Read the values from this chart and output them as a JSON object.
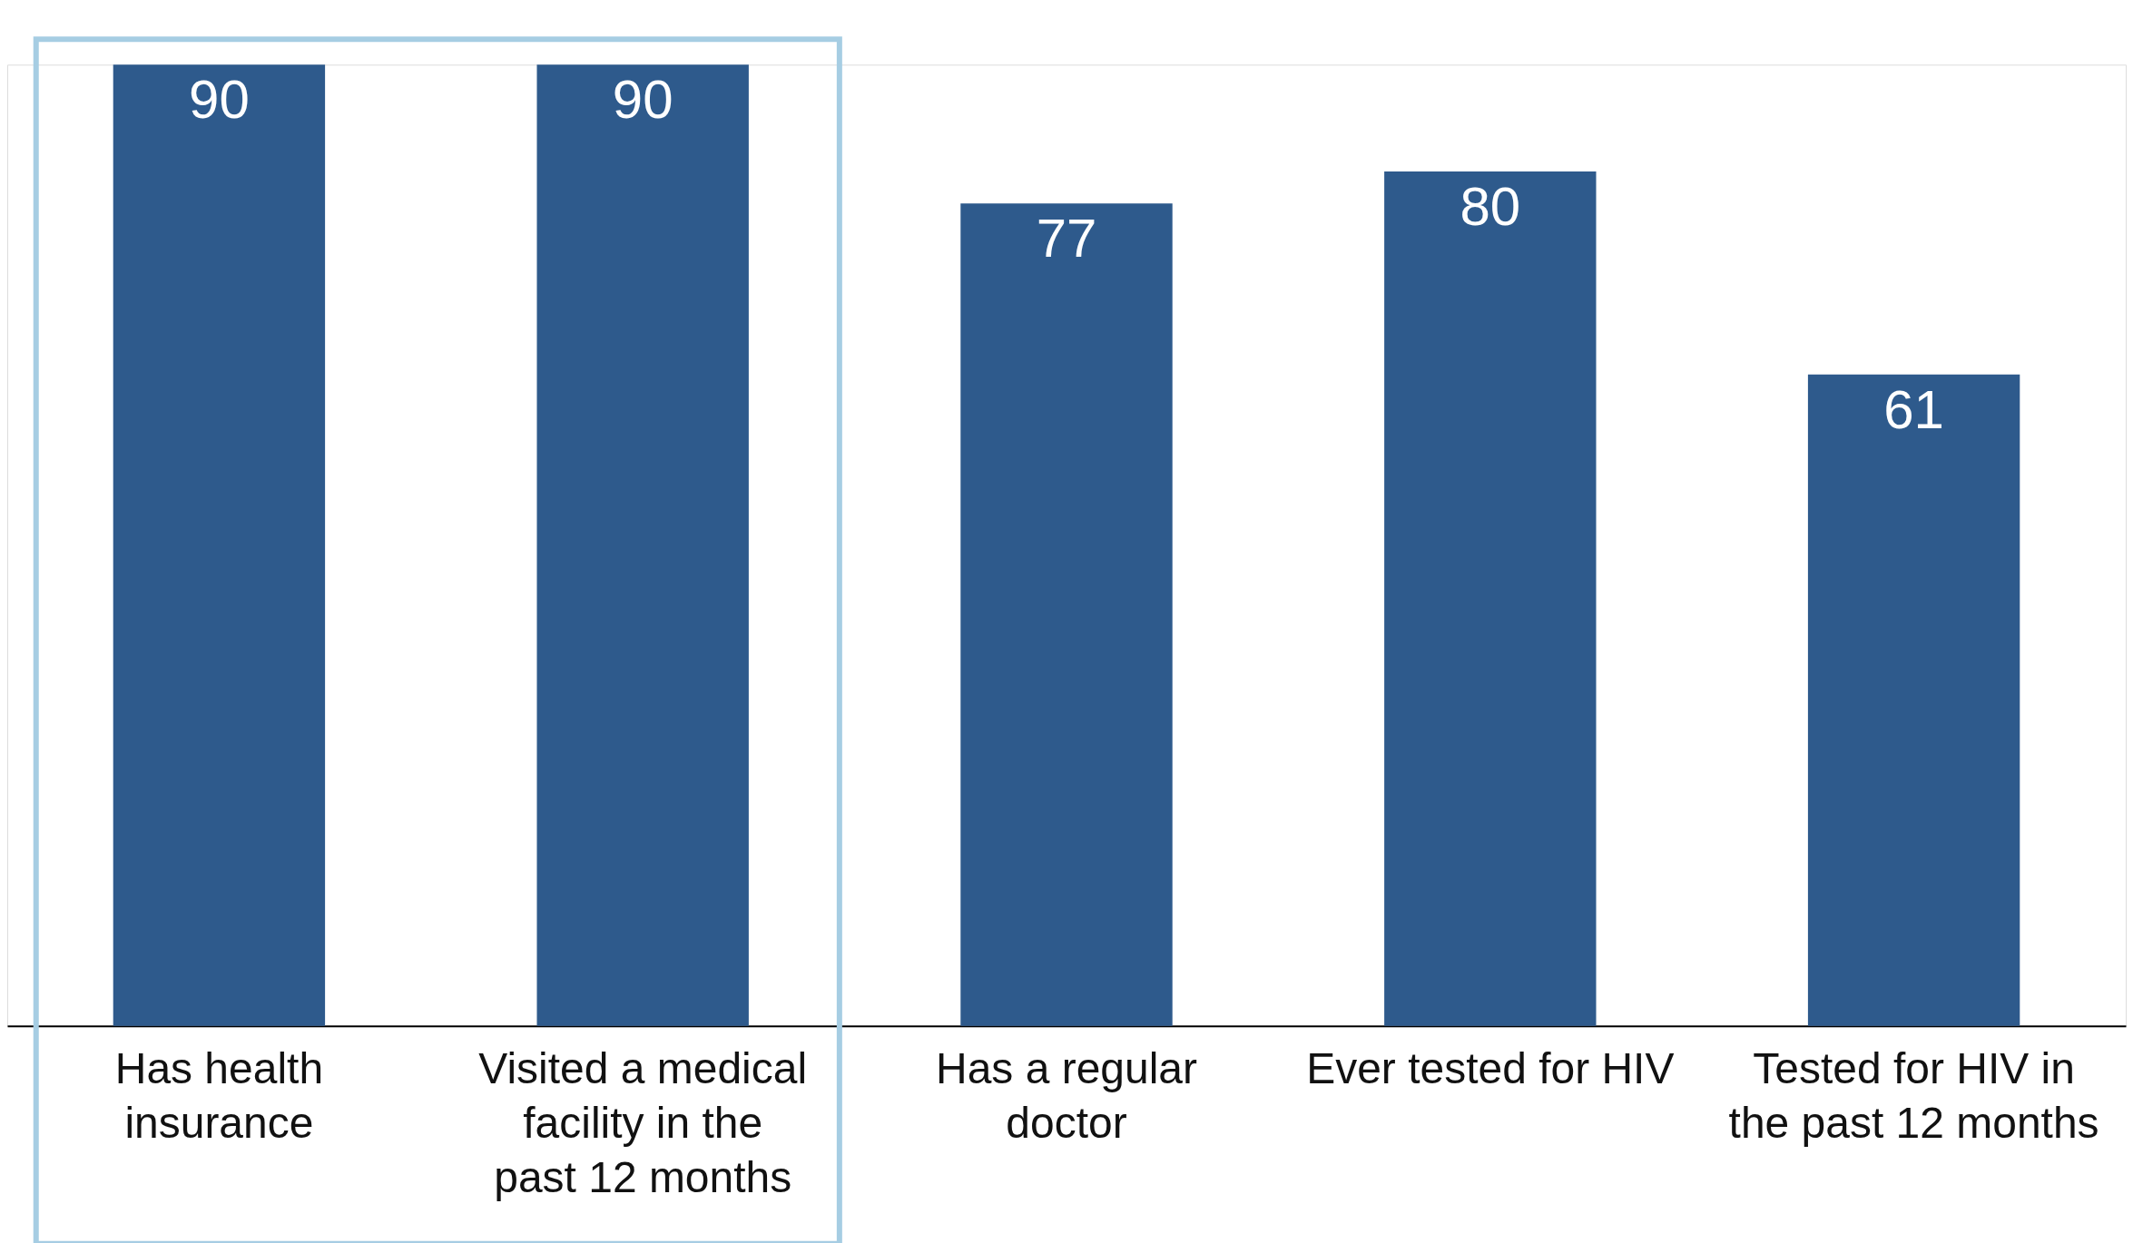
{
  "chart_data": {
    "type": "bar",
    "categories": [
      "Has health insurance",
      "Visited a medical facility in the past 12 months",
      "Has a regular doctor",
      "Ever tested for HIV",
      "Tested for HIV in the past 12 months"
    ],
    "values": [
      90,
      90,
      77,
      80,
      61
    ],
    "color": "#2e5a8c",
    "data_labels": true
  }
}
